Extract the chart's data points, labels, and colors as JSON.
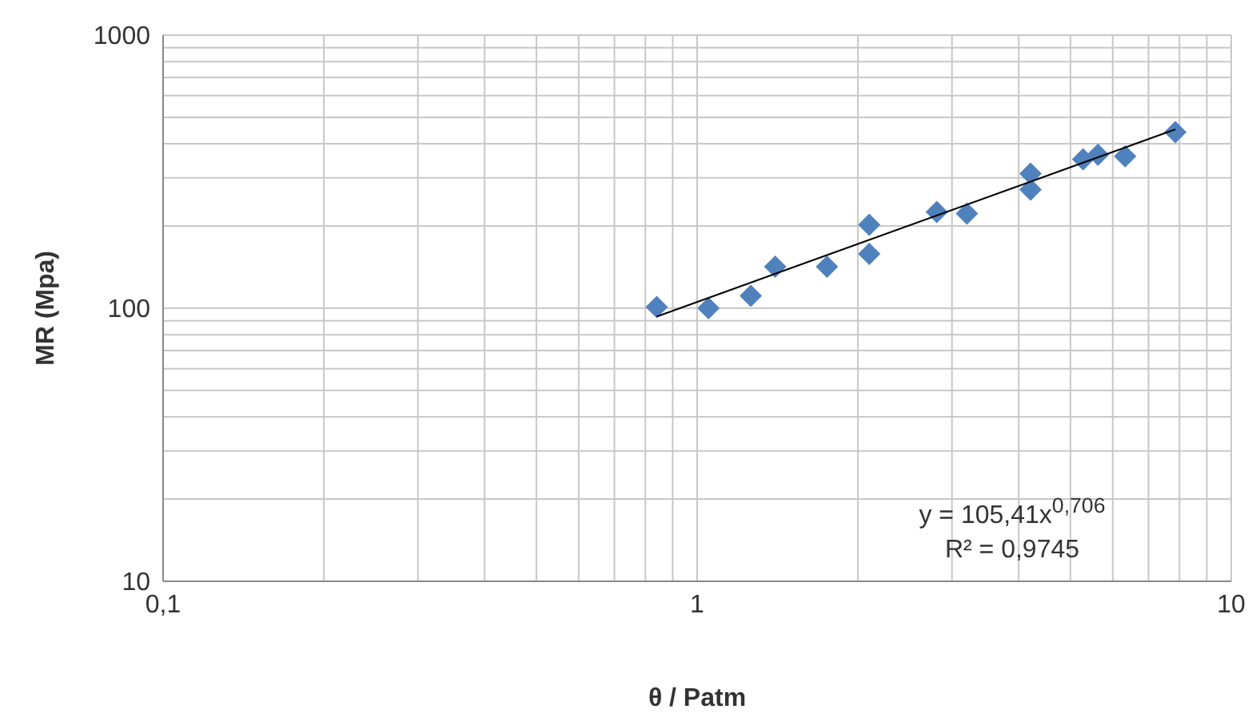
{
  "chart_data": {
    "type": "scatter",
    "xlabel": "θ / Patm",
    "ylabel": "MR (Mpa)",
    "log": "xy",
    "grid": true,
    "marker": "diamond",
    "xlim": [
      0.1,
      10
    ],
    "ylim": [
      10,
      1000
    ],
    "xticks": [
      {
        "value": 0.1,
        "label": "0,1"
      },
      {
        "value": 0.2,
        "label": null
      },
      {
        "value": 0.3,
        "label": null
      },
      {
        "value": 0.4,
        "label": null
      },
      {
        "value": 0.5,
        "label": null
      },
      {
        "value": 0.6,
        "label": null
      },
      {
        "value": 0.7,
        "label": null
      },
      {
        "value": 0.8,
        "label": null
      },
      {
        "value": 0.9,
        "label": null
      },
      1,
      {
        "value": 2,
        "label": null
      },
      {
        "value": 3,
        "label": null
      },
      {
        "value": 4,
        "label": null
      },
      {
        "value": 5,
        "label": null
      },
      {
        "value": 6,
        "label": null
      },
      {
        "value": 7,
        "label": null
      },
      {
        "value": 8,
        "label": null
      },
      {
        "value": 9,
        "label": null
      },
      10
    ],
    "yticks": [
      10,
      {
        "value": 20,
        "label": null
      },
      {
        "value": 30,
        "label": null
      },
      {
        "value": 40,
        "label": null
      },
      {
        "value": 50,
        "label": null
      },
      {
        "value": 60,
        "label": null
      },
      {
        "value": 70,
        "label": null
      },
      {
        "value": 80,
        "label": null
      },
      {
        "value": 90,
        "label": null
      },
      100,
      {
        "value": 200,
        "label": null
      },
      {
        "value": 300,
        "label": null
      },
      {
        "value": 400,
        "label": null
      },
      {
        "value": 500,
        "label": null
      },
      {
        "value": 600,
        "label": null
      },
      {
        "value": 700,
        "label": null
      },
      {
        "value": 800,
        "label": null
      },
      {
        "value": 900,
        "label": null
      },
      1000
    ],
    "series": [
      {
        "color": "#4f81bd",
        "x": [
          0.84,
          1.05,
          1.26,
          1.4,
          1.75,
          2.1,
          2.1,
          2.81,
          3.2,
          4.21,
          4.21,
          5.28,
          5.63,
          6.33,
          7.86
        ],
        "values": [
          101,
          100,
          111,
          142,
          142,
          202,
          158,
          225,
          222,
          311,
          272,
          351,
          365,
          360,
          441
        ]
      },
      {
        "type": "line",
        "color": "#000000",
        "marker": "none",
        "x": [
          0.84,
          7.86
        ],
        "values": [
          93.2,
          451.7
        ]
      }
    ],
    "annotations": [
      "y = 105,41x$^{0,706}$",
      "R² = 0,9745"
    ]
  }
}
